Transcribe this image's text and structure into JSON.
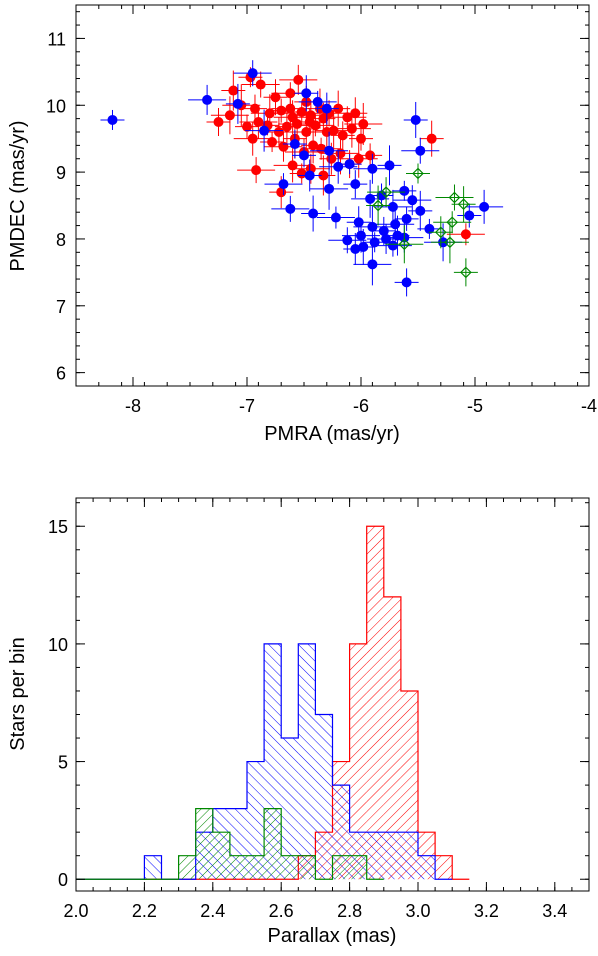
{
  "chart_data": [
    {
      "type": "scatter",
      "title": "",
      "xlabel": "PMRA (mas/yr)",
      "ylabel": "PMDEC (mas/yr)",
      "xlim": [
        -8.5,
        -4
      ],
      "ylim": [
        5.8,
        11.5
      ],
      "xticks": [
        -8,
        -7,
        -6,
        -5,
        -4
      ],
      "xtick_labels": [
        "-8",
        "-7",
        "-6",
        "-5",
        "-4"
      ],
      "yticks": [
        6,
        7,
        8,
        9,
        10,
        11
      ],
      "ytick_labels": [
        "6",
        "7",
        "8",
        "9",
        "10",
        "11"
      ],
      "grid": false,
      "series": [
        {
          "color": "#ff0000",
          "marker": "filled-circle",
          "points": [
            [
              -6.97,
              10.42
            ],
            [
              -6.55,
              10.38
            ],
            [
              -7.12,
              10.22
            ],
            [
              -6.88,
              10.31
            ],
            [
              -6.75,
              10.12
            ],
            [
              -6.62,
              10.18
            ],
            [
              -6.48,
              10.05
            ],
            [
              -7.05,
              10.0
            ],
            [
              -6.93,
              9.95
            ],
            [
              -6.8,
              9.88
            ],
            [
              -6.7,
              9.92
            ],
            [
              -6.6,
              9.82
            ],
            [
              -6.52,
              9.9
            ],
            [
              -6.44,
              9.85
            ],
            [
              -6.36,
              9.95
            ],
            [
              -6.28,
              9.88
            ],
            [
              -6.2,
              9.95
            ],
            [
              -6.12,
              9.82
            ],
            [
              -6.05,
              9.88
            ],
            [
              -5.98,
              9.72
            ],
            [
              -7.25,
              9.75
            ],
            [
              -7.15,
              9.85
            ],
            [
              -7.0,
              9.68
            ],
            [
              -6.9,
              9.75
            ],
            [
              -6.82,
              9.7
            ],
            [
              -6.72,
              9.6
            ],
            [
              -6.65,
              9.68
            ],
            [
              -6.56,
              9.72
            ],
            [
              -6.48,
              9.6
            ],
            [
              -6.4,
              9.7
            ],
            [
              -6.33,
              9.8
            ],
            [
              -6.24,
              9.62
            ],
            [
              -6.16,
              9.55
            ],
            [
              -6.08,
              9.65
            ],
            [
              -6.0,
              9.5
            ],
            [
              -6.95,
              9.5
            ],
            [
              -6.78,
              9.45
            ],
            [
              -6.68,
              9.38
            ],
            [
              -6.58,
              9.5
            ],
            [
              -6.5,
              9.3
            ],
            [
              -6.42,
              9.4
            ],
            [
              -6.35,
              9.35
            ],
            [
              -6.26,
              9.2
            ],
            [
              -6.18,
              9.28
            ],
            [
              -6.1,
              9.12
            ],
            [
              -6.02,
              9.2
            ],
            [
              -5.92,
              9.25
            ],
            [
              -6.6,
              9.1
            ],
            [
              -6.52,
              8.98
            ],
            [
              -6.44,
              9.05
            ],
            [
              -6.33,
              8.95
            ],
            [
              -6.92,
              9.03
            ],
            [
              -5.38,
              9.5
            ],
            [
              -5.08,
              8.07
            ],
            [
              -6.7,
              8.7
            ],
            [
              -6.3,
              9.6
            ],
            [
              -6.45,
              9.75
            ],
            [
              -6.62,
              9.95
            ]
          ]
        },
        {
          "color": "#0000ff",
          "marker": "filled-circle",
          "points": [
            [
              -8.18,
              9.78
            ],
            [
              -7.35,
              10.08
            ],
            [
              -7.08,
              10.02
            ],
            [
              -6.95,
              10.48
            ],
            [
              -6.48,
              10.18
            ],
            [
              -6.38,
              10.05
            ],
            [
              -6.3,
              9.95
            ],
            [
              -6.85,
              9.62
            ],
            [
              -6.58,
              9.42
            ],
            [
              -6.28,
              9.32
            ],
            [
              -6.5,
              9.25
            ],
            [
              -6.2,
              9.08
            ],
            [
              -6.1,
              9.12
            ],
            [
              -5.9,
              9.05
            ],
            [
              -5.75,
              9.1
            ],
            [
              -5.48,
              9.32
            ],
            [
              -5.52,
              9.78
            ],
            [
              -6.68,
              8.82
            ],
            [
              -6.45,
              8.95
            ],
            [
              -6.28,
              8.75
            ],
            [
              -6.05,
              8.82
            ],
            [
              -5.92,
              8.6
            ],
            [
              -5.82,
              8.65
            ],
            [
              -5.72,
              8.48
            ],
            [
              -5.62,
              8.72
            ],
            [
              -5.55,
              8.58
            ],
            [
              -5.48,
              8.42
            ],
            [
              -6.62,
              8.45
            ],
            [
              -6.42,
              8.38
            ],
            [
              -6.22,
              8.32
            ],
            [
              -6.02,
              8.25
            ],
            [
              -5.9,
              8.18
            ],
            [
              -5.8,
              8.12
            ],
            [
              -5.7,
              8.22
            ],
            [
              -5.6,
              8.3
            ],
            [
              -6.0,
              8.05
            ],
            [
              -5.88,
              7.95
            ],
            [
              -5.78,
              8.0
            ],
            [
              -5.68,
              8.05
            ],
            [
              -6.12,
              7.98
            ],
            [
              -5.98,
              7.88
            ],
            [
              -5.72,
              7.9
            ],
            [
              -6.05,
              7.85
            ],
            [
              -5.9,
              7.62
            ],
            [
              -5.6,
              7.35
            ],
            [
              -5.28,
              7.95
            ],
            [
              -5.05,
              8.35
            ],
            [
              -4.92,
              8.48
            ],
            [
              -5.4,
              8.15
            ],
            [
              -5.62,
              8.02
            ]
          ]
        },
        {
          "color": "#008800",
          "marker": "open-diamond",
          "points": [
            [
              -5.5,
              8.98
            ],
            [
              -5.78,
              8.7
            ],
            [
              -5.85,
              8.5
            ],
            [
              -5.18,
              8.62
            ],
            [
              -5.1,
              8.52
            ],
            [
              -5.2,
              8.25
            ],
            [
              -5.3,
              8.1
            ],
            [
              -5.22,
              7.95
            ],
            [
              -5.08,
              7.5
            ],
            [
              -5.62,
              7.92
            ]
          ]
        }
      ]
    },
    {
      "type": "bar",
      "style": "hatched-step-histogram",
      "title": "",
      "xlabel": "Parallax (mas)",
      "ylabel": "Stars per bin",
      "xlim": [
        2.0,
        3.5
      ],
      "ylim": [
        -0.5,
        16.2
      ],
      "bin_width": 0.05,
      "xticks": [
        2.0,
        2.2,
        2.4,
        2.6,
        2.8,
        3.0,
        3.2,
        3.4
      ],
      "xtick_labels": [
        "2.0",
        "2.2",
        "2.4",
        "2.6",
        "2.8",
        "3.0",
        "3.2",
        "3.4"
      ],
      "yticks": [
        0,
        5,
        10,
        15
      ],
      "ytick_labels": [
        "0",
        "5",
        "10",
        "15"
      ],
      "grid": false,
      "series": [
        {
          "color": "#ff0000",
          "hatch": "diagonal-right",
          "bin_left_edges": [
            2.65,
            2.7,
            2.75,
            2.8,
            2.85,
            2.9,
            2.95,
            3.0,
            3.05,
            3.1
          ],
          "values": [
            1,
            2,
            5,
            10,
            15,
            12,
            8,
            2,
            1,
            0
          ]
        },
        {
          "color": "#0000ff",
          "hatch": "diagonal-left",
          "bin_left_edges": [
            2.2,
            2.25,
            2.3,
            2.35,
            2.4,
            2.45,
            2.5,
            2.55,
            2.6,
            2.65,
            2.7,
            2.75,
            2.8,
            2.85,
            2.9,
            2.95,
            3.0,
            3.05
          ],
          "values": [
            1,
            0,
            0,
            2,
            3,
            3,
            5,
            10,
            6,
            10,
            7,
            4,
            2,
            2,
            2,
            2,
            1,
            0
          ]
        },
        {
          "color": "#008800",
          "hatch": "diagonal-right",
          "bin_left_edges": [
            2.3,
            2.35,
            2.4,
            2.45,
            2.5,
            2.55,
            2.6,
            2.65,
            2.7,
            2.75,
            2.8,
            2.85
          ],
          "values": [
            1,
            3,
            2,
            1,
            1,
            3,
            1,
            1,
            0,
            1,
            1,
            0
          ]
        }
      ]
    }
  ]
}
